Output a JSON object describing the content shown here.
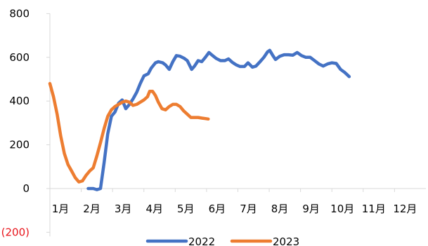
{
  "chart_data": {
    "type": "line",
    "title": "",
    "xlabel": "",
    "ylabel": "",
    "ylim": [
      -200,
      800
    ],
    "yticks": [
      {
        "value": 800,
        "label": "800"
      },
      {
        "value": 600,
        "label": "600"
      },
      {
        "value": 400,
        "label": "400"
      },
      {
        "value": 200,
        "label": "200"
      },
      {
        "value": 0,
        "label": "0"
      },
      {
        "value": -200,
        "label": "(200)"
      }
    ],
    "negative_label_color": "#e8141b",
    "x_categories": [
      "1月",
      "2月",
      "3月",
      "4月",
      "5月",
      "6月",
      "7月",
      "8月",
      "9月",
      "10月",
      "11月",
      "12月"
    ],
    "x_range_weeks": [
      0,
      52
    ],
    "weeks_per_month": 4.333,
    "grid": false,
    "legend": "bottom",
    "series": [
      {
        "name": "2022",
        "color": "#4472c4",
        "points": [
          [
            5.3,
            0
          ],
          [
            6.0,
            0
          ],
          [
            6.5,
            -5
          ],
          [
            7.0,
            0
          ],
          [
            7.5,
            120
          ],
          [
            8.0,
            250
          ],
          [
            8.5,
            330
          ],
          [
            9.0,
            350
          ],
          [
            9.5,
            390
          ],
          [
            10.0,
            405
          ],
          [
            10.5,
            365
          ],
          [
            11.0,
            385
          ],
          [
            11.5,
            410
          ],
          [
            12.0,
            440
          ],
          [
            12.5,
            480
          ],
          [
            13.0,
            515
          ],
          [
            13.6,
            525
          ],
          [
            14.0,
            550
          ],
          [
            14.6,
            575
          ],
          [
            15.0,
            580
          ],
          [
            15.6,
            575
          ],
          [
            16.0,
            565
          ],
          [
            16.5,
            545
          ],
          [
            17.0,
            580
          ],
          [
            17.5,
            608
          ],
          [
            18.0,
            605
          ],
          [
            18.6,
            595
          ],
          [
            19.0,
            585
          ],
          [
            19.6,
            545
          ],
          [
            20.0,
            560
          ],
          [
            20.5,
            585
          ],
          [
            21.0,
            580
          ],
          [
            21.5,
            600
          ],
          [
            22.0,
            622
          ],
          [
            22.5,
            608
          ],
          [
            23.0,
            595
          ],
          [
            23.6,
            585
          ],
          [
            24.2,
            585
          ],
          [
            24.7,
            593
          ],
          [
            25.2,
            578
          ],
          [
            25.8,
            565
          ],
          [
            26.3,
            558
          ],
          [
            26.9,
            558
          ],
          [
            27.4,
            575
          ],
          [
            28.0,
            555
          ],
          [
            28.5,
            560
          ],
          [
            29.0,
            578
          ],
          [
            29.6,
            600
          ],
          [
            30.1,
            625
          ],
          [
            30.4,
            632
          ],
          [
            30.8,
            610
          ],
          [
            31.2,
            590
          ],
          [
            31.8,
            605
          ],
          [
            32.4,
            612
          ],
          [
            33.0,
            612
          ],
          [
            33.6,
            610
          ],
          [
            34.2,
            622
          ],
          [
            34.8,
            608
          ],
          [
            35.4,
            600
          ],
          [
            36.0,
            600
          ],
          [
            36.6,
            585
          ],
          [
            37.2,
            570
          ],
          [
            37.8,
            560
          ],
          [
            38.4,
            570
          ],
          [
            39.0,
            575
          ],
          [
            39.6,
            572
          ],
          [
            40.2,
            545
          ],
          [
            40.8,
            530
          ],
          [
            41.4,
            512
          ]
        ]
      },
      {
        "name": "2023",
        "color": "#ed7d31",
        "points": [
          [
            0.0,
            480
          ],
          [
            0.5,
            420
          ],
          [
            1.0,
            340
          ],
          [
            1.5,
            240
          ],
          [
            2.0,
            160
          ],
          [
            2.5,
            110
          ],
          [
            3.0,
            80
          ],
          [
            3.5,
            50
          ],
          [
            4.0,
            30
          ],
          [
            4.5,
            35
          ],
          [
            5.0,
            60
          ],
          [
            5.5,
            80
          ],
          [
            6.0,
            95
          ],
          [
            6.5,
            150
          ],
          [
            7.0,
            210
          ],
          [
            7.5,
            275
          ],
          [
            8.0,
            330
          ],
          [
            8.5,
            360
          ],
          [
            9.0,
            375
          ],
          [
            9.5,
            385
          ],
          [
            10.0,
            395
          ],
          [
            10.5,
            400
          ],
          [
            11.0,
            395
          ],
          [
            11.5,
            380
          ],
          [
            12.0,
            385
          ],
          [
            12.5,
            395
          ],
          [
            13.0,
            405
          ],
          [
            13.5,
            420
          ],
          [
            13.8,
            445
          ],
          [
            14.2,
            445
          ],
          [
            14.6,
            425
          ],
          [
            15.0,
            395
          ],
          [
            15.5,
            365
          ],
          [
            16.0,
            360
          ],
          [
            16.5,
            375
          ],
          [
            17.0,
            385
          ],
          [
            17.5,
            385
          ],
          [
            18.0,
            375
          ],
          [
            18.5,
            355
          ],
          [
            19.0,
            340
          ],
          [
            19.5,
            325
          ],
          [
            20.0,
            325
          ],
          [
            20.5,
            325
          ],
          [
            21.0,
            322
          ],
          [
            21.5,
            320
          ],
          [
            21.9,
            318
          ]
        ]
      }
    ]
  }
}
